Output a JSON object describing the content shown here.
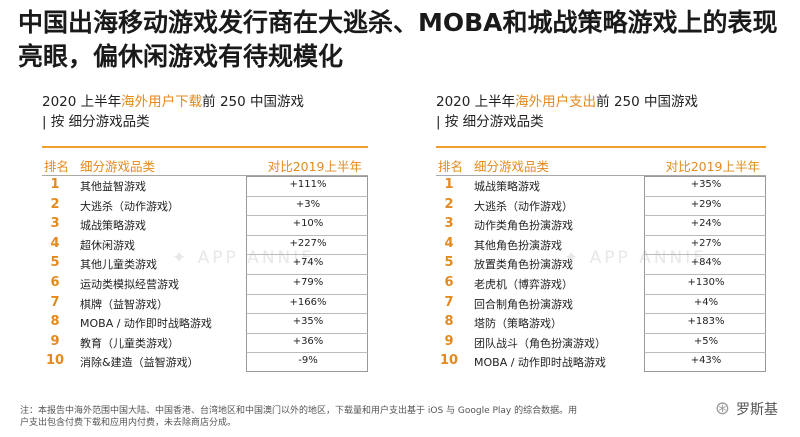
{
  "title": "中国出海移动游戏发行商在大逃杀、MOBA和城战策略游戏上的表现亮眼，偏休闲游戏有待规模化",
  "watermark": "✦ APP ANNIE",
  "left": {
    "subtitle_pre": "2020 上半年",
    "subtitle_hl": "海外用户下载",
    "subtitle_post": "前 250 中国游戏",
    "subtitle2": "| 按 细分游戏品类",
    "col_rank": "排名",
    "col_category": "细分游戏品类",
    "col_delta": "对比2019上半年",
    "rows": [
      {
        "rank": "1",
        "category": "其他益智游戏",
        "delta": "+111%"
      },
      {
        "rank": "2",
        "category": "大逃杀（动作游戏）",
        "delta": "+3%"
      },
      {
        "rank": "3",
        "category": "城战策略游戏",
        "delta": "+10%"
      },
      {
        "rank": "4",
        "category": "超休闲游戏",
        "delta": "+227%"
      },
      {
        "rank": "5",
        "category": "其他儿童类游戏",
        "delta": "+74%"
      },
      {
        "rank": "6",
        "category": "运动类模拟经营游戏",
        "delta": "+79%"
      },
      {
        "rank": "7",
        "category": "棋牌（益智游戏）",
        "delta": "+166%"
      },
      {
        "rank": "8",
        "category": "MOBA / 动作即时战略游戏",
        "delta": "+35%"
      },
      {
        "rank": "9",
        "category": "教育（儿童类游戏）",
        "delta": "+36%"
      },
      {
        "rank": "10",
        "category": "消除&建造（益智游戏）",
        "delta": "-9%"
      }
    ]
  },
  "right": {
    "subtitle_pre": "2020 上半年",
    "subtitle_hl": "海外用户支出",
    "subtitle_post": "前 250 中国游戏",
    "subtitle2": "| 按 细分游戏品类",
    "col_rank": "排名",
    "col_category": "细分游戏品类",
    "col_delta": "对比2019上半年",
    "rows": [
      {
        "rank": "1",
        "category": "城战策略游戏",
        "delta": "+35%"
      },
      {
        "rank": "2",
        "category": "大逃杀（动作游戏）",
        "delta": "+29%"
      },
      {
        "rank": "3",
        "category": "动作类角色扮演游戏",
        "delta": "+24%"
      },
      {
        "rank": "4",
        "category": "其他角色扮演游戏",
        "delta": "+27%"
      },
      {
        "rank": "5",
        "category": "放置类角色扮演游戏",
        "delta": "+84%"
      },
      {
        "rank": "6",
        "category": "老虎机（博弈游戏）",
        "delta": "+130%"
      },
      {
        "rank": "7",
        "category": "回合制角色扮演游戏",
        "delta": "+4%"
      },
      {
        "rank": "8",
        "category": "塔防（策略游戏）",
        "delta": "+183%"
      },
      {
        "rank": "9",
        "category": "团队战斗（角色扮演游戏）",
        "delta": "+5%"
      },
      {
        "rank": "10",
        "category": "MOBA / 动作即时战略游戏",
        "delta": "+43%"
      }
    ]
  },
  "footnote": "注：本报告中海外范围中国大陆、中国香港、台湾地区和中国澳门以外的地区，下载量和用户支出基于 iOS 与 Google Play 的综合数据。用户支出包含付费下载和应用内付费，未去除商店分成。",
  "brand": {
    "icon": "wechat-icon",
    "glyph": "⊛",
    "name": "罗斯基"
  }
}
